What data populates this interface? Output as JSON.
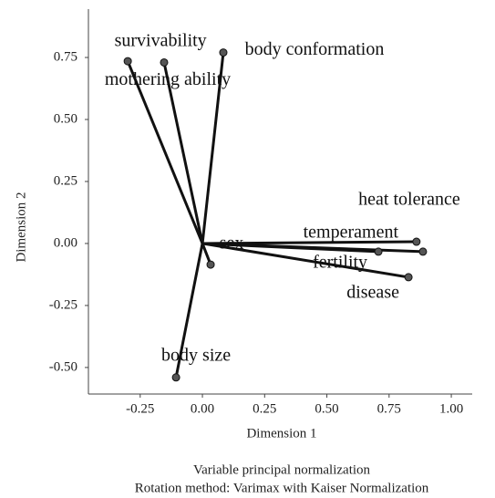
{
  "chart_data": {
    "type": "loading-plot",
    "x_label": "Dimension 1",
    "y_label": "Dimension 2",
    "notes": [
      "Variable principal normalization",
      "Rotation method: Varimax with Kaiser Normalization"
    ],
    "points": [
      {
        "label": "survivability",
        "x": -0.3,
        "y": 0.735
      },
      {
        "label": "mothering ability",
        "x": -0.154,
        "y": 0.73
      },
      {
        "label": "body conformation",
        "x": 0.084,
        "y": 0.77
      },
      {
        "label": "heat tolerance",
        "x": 0.886,
        "y": -0.033
      },
      {
        "label": "temperament",
        "x": 0.86,
        "y": 0.007
      },
      {
        "label": "fertility",
        "x": 0.707,
        "y": -0.033
      },
      {
        "label": "disease",
        "x": 0.828,
        "y": -0.136
      },
      {
        "label": "sex",
        "x": 0.033,
        "y": -0.085
      },
      {
        "label": "body size",
        "x": -0.106,
        "y": -0.54
      }
    ],
    "color": "#111111",
    "xlim": [
      -0.458,
      1.084
    ],
    "ylim": [
      -0.607,
      0.945
    ],
    "xticks": [
      {
        "value": -0.25,
        "label": "-0.25"
      },
      {
        "value": 0,
        "label": "0.00"
      },
      {
        "value": 0.25,
        "label": "0.25"
      },
      {
        "value": 0.5,
        "label": "0.50"
      },
      {
        "value": 0.75,
        "label": "0.75"
      },
      {
        "value": 1,
        "label": "1.00"
      }
    ],
    "yticks": [
      {
        "value": -0.5,
        "label": "-0.50"
      },
      {
        "value": -0.25,
        "label": "-0.25"
      },
      {
        "value": 0,
        "label": "0.00"
      },
      {
        "value": 0.25,
        "label": "0.25"
      },
      {
        "value": 0.5,
        "label": "0.50"
      },
      {
        "value": 0.75,
        "label": "0.75"
      }
    ]
  }
}
